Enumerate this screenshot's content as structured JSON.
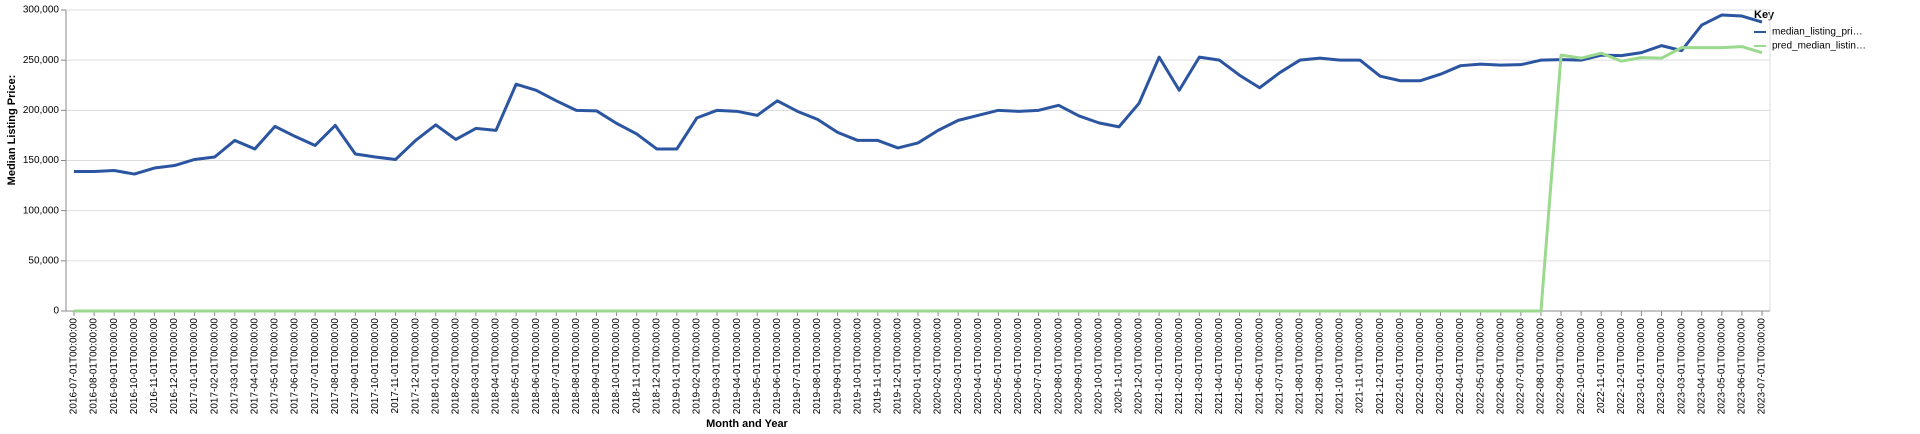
{
  "chart_data": {
    "type": "line",
    "x_label": "Month and Year",
    "y_label": "Median Listing Price:",
    "legend_title": "Key",
    "legend_position": "right",
    "grid": true,
    "categories": [
      "2016-07-01T00:00:00",
      "2016-08-01T00:00:00",
      "2016-09-01T00:00:00",
      "2016-10-01T00:00:00",
      "2016-11-01T00:00:00",
      "2016-12-01T00:00:00",
      "2017-01-01T00:00:00",
      "2017-02-01T00:00:00",
      "2017-03-01T00:00:00",
      "2017-04-01T00:00:00",
      "2017-05-01T00:00:00",
      "2017-06-01T00:00:00",
      "2017-07-01T00:00:00",
      "2017-08-01T00:00:00",
      "2017-09-01T00:00:00",
      "2017-10-01T00:00:00",
      "2017-11-01T00:00:00",
      "2017-12-01T00:00:00",
      "2018-01-01T00:00:00",
      "2018-02-01T00:00:00",
      "2018-03-01T00:00:00",
      "2018-04-01T00:00:00",
      "2018-05-01T00:00:00",
      "2018-06-01T00:00:00",
      "2018-07-01T00:00:00",
      "2018-08-01T00:00:00",
      "2018-09-01T00:00:00",
      "2018-10-01T00:00:00",
      "2018-11-01T00:00:00",
      "2018-12-01T00:00:00",
      "2019-01-01T00:00:00",
      "2019-02-01T00:00:00",
      "2019-03-01T00:00:00",
      "2019-04-01T00:00:00",
      "2019-05-01T00:00:00",
      "2019-06-01T00:00:00",
      "2019-07-01T00:00:00",
      "2019-08-01T00:00:00",
      "2019-09-01T00:00:00",
      "2019-10-01T00:00:00",
      "2019-11-01T00:00:00",
      "2019-12-01T00:00:00",
      "2020-01-01T00:00:00",
      "2020-02-01T00:00:00",
      "2020-03-01T00:00:00",
      "2020-04-01T00:00:00",
      "2020-05-01T00:00:00",
      "2020-06-01T00:00:00",
      "2020-07-01T00:00:00",
      "2020-08-01T00:00:00",
      "2020-09-01T00:00:00",
      "2020-10-01T00:00:00",
      "2020-11-01T00:00:00",
      "2020-12-01T00:00:00",
      "2021-01-01T00:00:00",
      "2021-02-01T00:00:00",
      "2021-03-01T00:00:00",
      "2021-04-01T00:00:00",
      "2021-05-01T00:00:00",
      "2021-06-01T00:00:00",
      "2021-07-01T00:00:00",
      "2021-08-01T00:00:00",
      "2021-09-01T00:00:00",
      "2021-10-01T00:00:00",
      "2021-11-01T00:00:00",
      "2021-12-01T00:00:00",
      "2022-01-01T00:00:00",
      "2022-02-01T00:00:00",
      "2022-03-01T00:00:00",
      "2022-04-01T00:00:00",
      "2022-05-01T00:00:00",
      "2022-06-01T00:00:00",
      "2022-07-01T00:00:00",
      "2022-08-01T00:00:00",
      "2022-09-01T00:00:00",
      "2022-10-01T00:00:00",
      "2022-11-01T00:00:00",
      "2022-12-01T00:00:00",
      "2023-01-01T00:00:00",
      "2023-02-01T00:00:00",
      "2023-03-01T00:00:00",
      "2023-04-01T00:00:00",
      "2023-05-01T00:00:00",
      "2023-06-01T00:00:00",
      "2023-07-01T00:00:00"
    ],
    "series": [
      {
        "name": "median_listing_pri…",
        "color": "#2b55a0",
        "values": [
          139000,
          139000,
          140000,
          136500,
          142500,
          145000,
          151000,
          153500,
          170000,
          161500,
          184000,
          174000,
          165000,
          185000,
          156500,
          153500,
          151000,
          170000,
          185500,
          171000,
          182000,
          180000,
          226000,
          220000,
          209500,
          200000,
          199500,
          187000,
          176500,
          161500,
          161500,
          192500,
          200000,
          199000,
          195000,
          209500,
          199000,
          191000,
          178000,
          170000,
          170000,
          162500,
          167500,
          180000,
          190000,
          195000,
          200000,
          199000,
          200000,
          205000,
          194500,
          187500,
          183500,
          207000,
          253000,
          220000,
          253000,
          250000,
          235000,
          222500,
          237500,
          250000,
          252000,
          250000,
          250000,
          234000,
          229500,
          229500,
          236000,
          244500,
          246000,
          245000,
          245500,
          250000,
          250500,
          250000,
          255000,
          254500,
          257500,
          264500,
          259500,
          285000,
          295000,
          294000,
          288000
        ]
      },
      {
        "name": "pred_median_listin…",
        "color": "#9ad98e",
        "values": [
          0,
          0,
          0,
          0,
          0,
          0,
          0,
          0,
          0,
          0,
          0,
          0,
          0,
          0,
          0,
          0,
          0,
          0,
          0,
          0,
          0,
          0,
          0,
          0,
          0,
          0,
          0,
          0,
          0,
          0,
          0,
          0,
          0,
          0,
          0,
          0,
          0,
          0,
          0,
          0,
          0,
          0,
          0,
          0,
          0,
          0,
          0,
          0,
          0,
          0,
          0,
          0,
          0,
          0,
          0,
          0,
          0,
          0,
          0,
          0,
          0,
          0,
          0,
          0,
          0,
          0,
          0,
          0,
          0,
          0,
          0,
          0,
          0,
          0,
          255000,
          252000,
          257000,
          249000,
          252500,
          252000,
          262500,
          262500,
          262500,
          263500,
          257500
        ]
      }
    ],
    "ylim": [
      0,
      300000
    ],
    "yticks": [
      0,
      {
        "value": 50000,
        "label": "50,000"
      },
      {
        "value": 100000,
        "label": "100,000"
      },
      {
        "value": 150000,
        "label": "150,000"
      },
      {
        "value": 200000,
        "label": "200,000"
      },
      {
        "value": 250000,
        "label": "250,000"
      },
      {
        "value": 300000,
        "label": "300,000"
      }
    ]
  }
}
